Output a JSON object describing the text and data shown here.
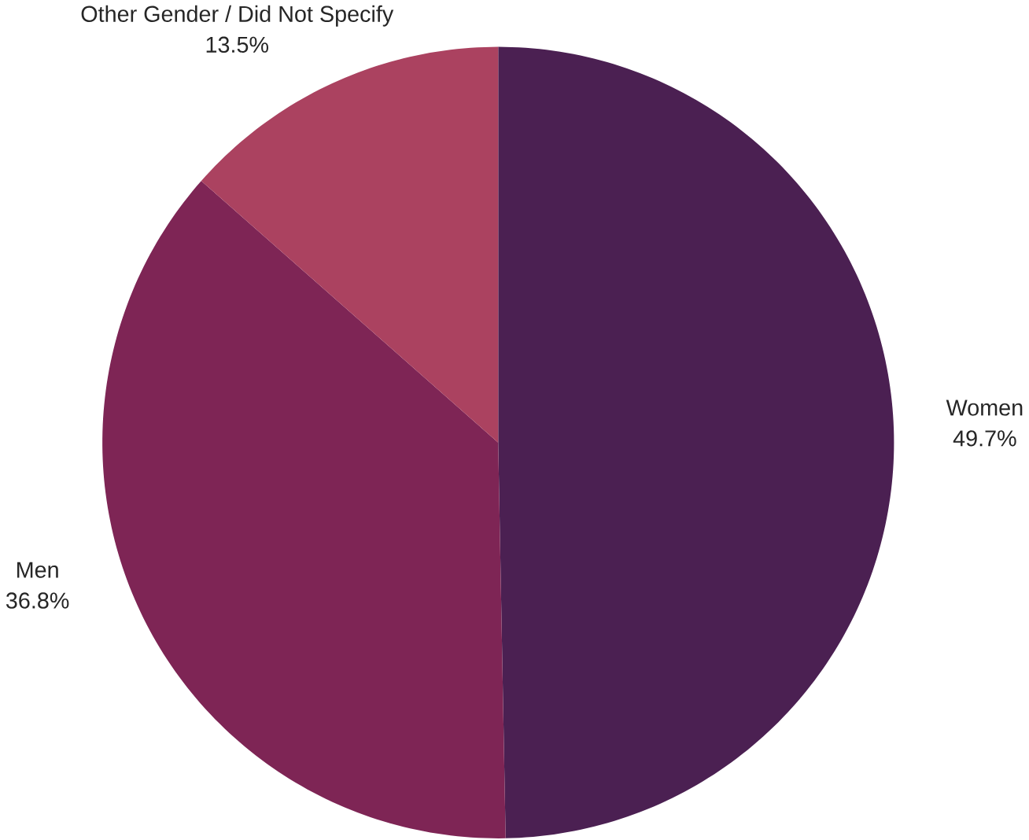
{
  "chart_data": {
    "type": "pie",
    "categories": [
      "Women",
      "Men",
      "Other Gender / Did Not Specify"
    ],
    "values": [
      49.7,
      36.8,
      13.5
    ],
    "value_labels": [
      "49.7%",
      "36.8%",
      "13.5%"
    ],
    "colors": [
      "#4b2052",
      "#7e2555",
      "#ab4260"
    ]
  }
}
